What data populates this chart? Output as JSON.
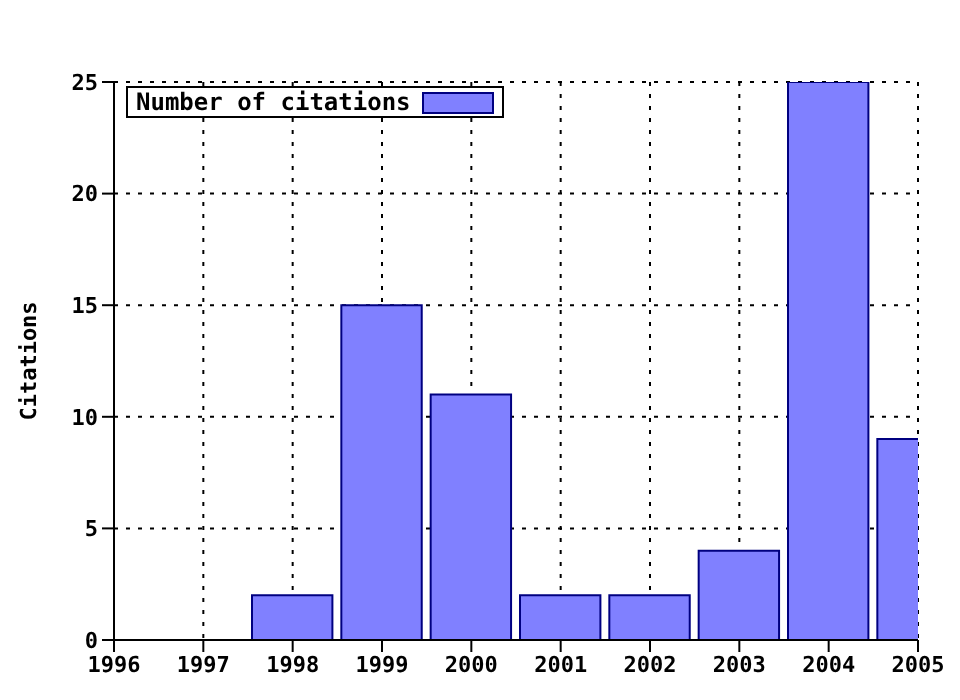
{
  "chart_data": {
    "type": "bar",
    "ylabel": "Citations",
    "x": [
      1998,
      1999,
      2000,
      2001,
      2002,
      2003,
      2004,
      2005
    ],
    "series": [
      {
        "name": "Number of citations",
        "color": "#8080ff",
        "values": [
          2,
          15,
          11,
          2,
          2,
          4,
          25,
          9
        ]
      }
    ],
    "xlim": [
      1996,
      2005
    ],
    "xticks": [
      1996,
      1997,
      1998,
      1999,
      2000,
      2001,
      2002,
      2003,
      2004,
      2005
    ],
    "ylim": [
      0,
      25
    ],
    "yticks": [
      0,
      5,
      10,
      15,
      20,
      25
    ],
    "grid": true,
    "legend": "top left"
  }
}
